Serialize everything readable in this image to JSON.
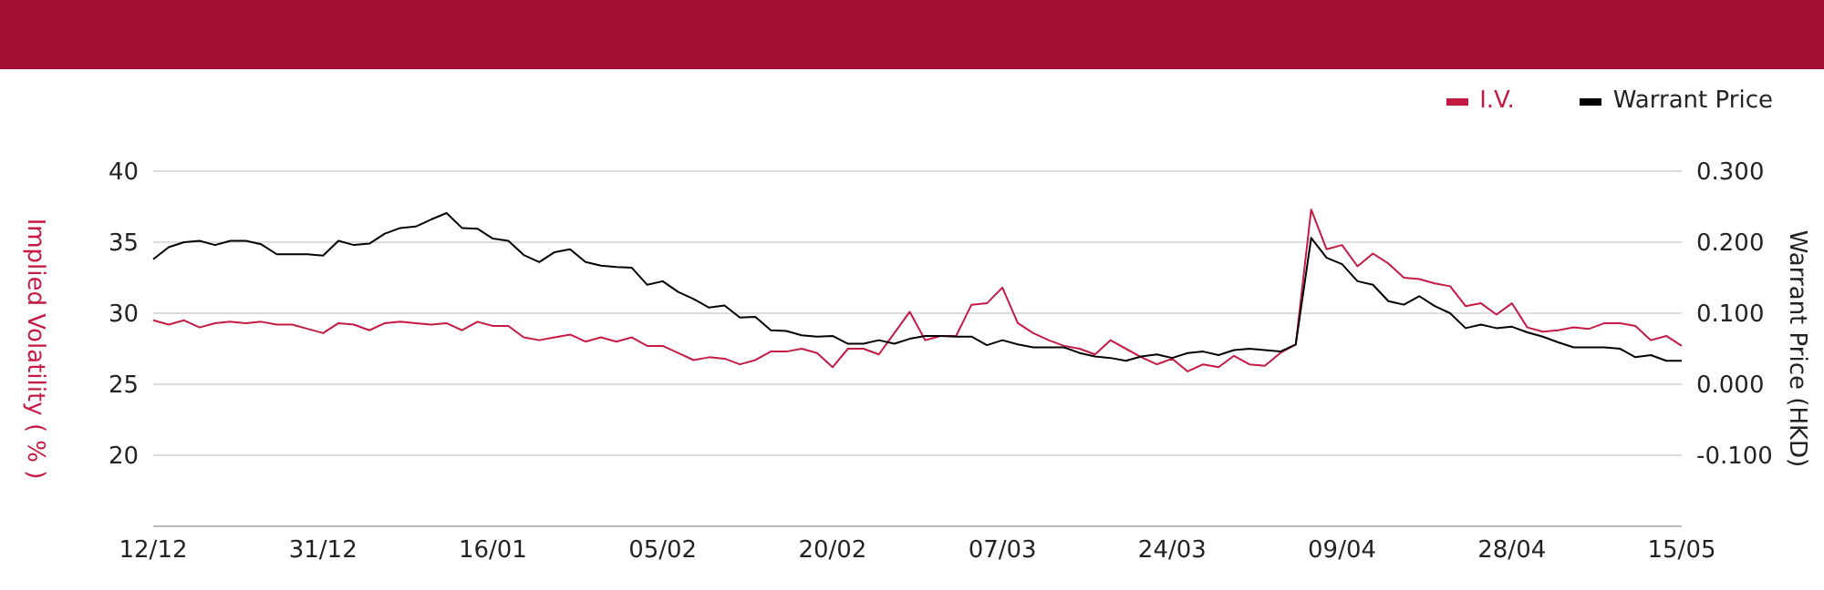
{
  "chart_data": {
    "type": "line",
    "categories": [
      "12/12",
      null,
      null,
      null,
      null,
      null,
      null,
      null,
      null,
      null,
      null,
      "31/12",
      null,
      null,
      null,
      null,
      null,
      null,
      null,
      null,
      null,
      null,
      "16/01",
      null,
      null,
      null,
      null,
      null,
      null,
      null,
      null,
      null,
      null,
      "05/02",
      null,
      null,
      null,
      null,
      null,
      null,
      null,
      null,
      null,
      null,
      "20/02",
      null,
      null,
      null,
      null,
      null,
      null,
      null,
      null,
      null,
      null,
      "07/03",
      null,
      null,
      null,
      null,
      null,
      null,
      null,
      null,
      null,
      null,
      "24/03",
      null,
      null,
      null,
      null,
      null,
      null,
      null,
      null,
      null,
      null,
      "09/04",
      null,
      null,
      null,
      null,
      null,
      null,
      null,
      null,
      null,
      null,
      "28/04",
      null,
      null,
      null,
      null,
      null,
      null,
      null,
      null,
      null,
      null,
      "15/05"
    ],
    "series": [
      {
        "name": "I.V.",
        "color": "#c41a43",
        "values": [
          29.5,
          29.2,
          29.5,
          29.0,
          29.3,
          29.4,
          29.3,
          29.4,
          29.2,
          29.2,
          28.9,
          28.6,
          29.3,
          29.2,
          28.8,
          29.3,
          29.4,
          29.3,
          29.2,
          29.3,
          28.8,
          29.4,
          29.1,
          29.1,
          28.3,
          28.1,
          28.3,
          28.5,
          28.0,
          28.3,
          28.0,
          28.3,
          27.7,
          27.7,
          27.2,
          26.7,
          26.9,
          26.8,
          26.4,
          26.7,
          27.3,
          27.3,
          27.5,
          27.2,
          26.2,
          27.5,
          27.5,
          27.1,
          28.6,
          30.1,
          28.1,
          28.4,
          28.4,
          30.6,
          30.7,
          31.8,
          29.3,
          28.6,
          28.1,
          27.7,
          27.5,
          27.1,
          28.1,
          27.5,
          26.9,
          26.4,
          26.8,
          25.9,
          26.4,
          26.2,
          27.0,
          26.4,
          26.3,
          27.2,
          27.8,
          37.3,
          34.5,
          34.8,
          33.3,
          34.2,
          33.5,
          32.5,
          32.4,
          32.1,
          31.9,
          30.5,
          30.7,
          29.9,
          30.7,
          29.0,
          28.7,
          28.8,
          29.0,
          28.9,
          29.3,
          29.3,
          29.1,
          28.1,
          28.4,
          27.7
        ]
      },
      {
        "name": "Warrant Price",
        "color": "#000000",
        "axis": "y2",
        "values": [
          0.176,
          0.193,
          0.2,
          0.202,
          0.196,
          0.202,
          0.202,
          0.197,
          0.183,
          0.183,
          0.183,
          0.181,
          0.202,
          0.196,
          0.198,
          0.212,
          0.22,
          0.222,
          0.232,
          0.241,
          0.22,
          0.219,
          0.205,
          0.202,
          0.182,
          0.172,
          0.186,
          0.19,
          0.172,
          0.167,
          0.165,
          0.164,
          0.14,
          0.145,
          0.13,
          0.12,
          0.108,
          0.111,
          0.094,
          0.095,
          0.076,
          0.075,
          0.069,
          0.067,
          0.068,
          0.057,
          0.057,
          0.062,
          0.057,
          0.064,
          0.068,
          0.068,
          0.067,
          0.067,
          0.055,
          0.062,
          0.056,
          0.052,
          0.052,
          0.052,
          0.044,
          0.039,
          0.037,
          0.033,
          0.039,
          0.042,
          0.037,
          0.044,
          0.046,
          0.041,
          0.048,
          0.05,
          0.048,
          0.046,
          0.056,
          0.206,
          0.178,
          0.169,
          0.145,
          0.14,
          0.117,
          0.112,
          0.124,
          0.11,
          0.1,
          0.079,
          0.084,
          0.079,
          0.081,
          0.073,
          0.067,
          0.059,
          0.052,
          0.052,
          0.052,
          0.05,
          0.038,
          0.041,
          0.033,
          0.033
        ]
      }
    ],
    "ylabel": "Implied Volatility ( % )",
    "y2label": "Warrant Price (HKD)",
    "ylim": [
      15,
      40
    ],
    "yticks": [
      20,
      25,
      30,
      35,
      40
    ],
    "y2lim": [
      -0.2,
      0.3
    ],
    "y2ticks": [
      {
        "value": -0.1,
        "label": "-0.100"
      },
      {
        "value": 0,
        "label": "0.000"
      },
      {
        "value": 0.1,
        "label": "0.100"
      },
      {
        "value": 0.2,
        "label": "0.200"
      },
      {
        "value": 0.3,
        "label": "0.300"
      }
    ],
    "grid": "y",
    "legend": "top right",
    "marker": "none",
    "line_style": "solid"
  }
}
